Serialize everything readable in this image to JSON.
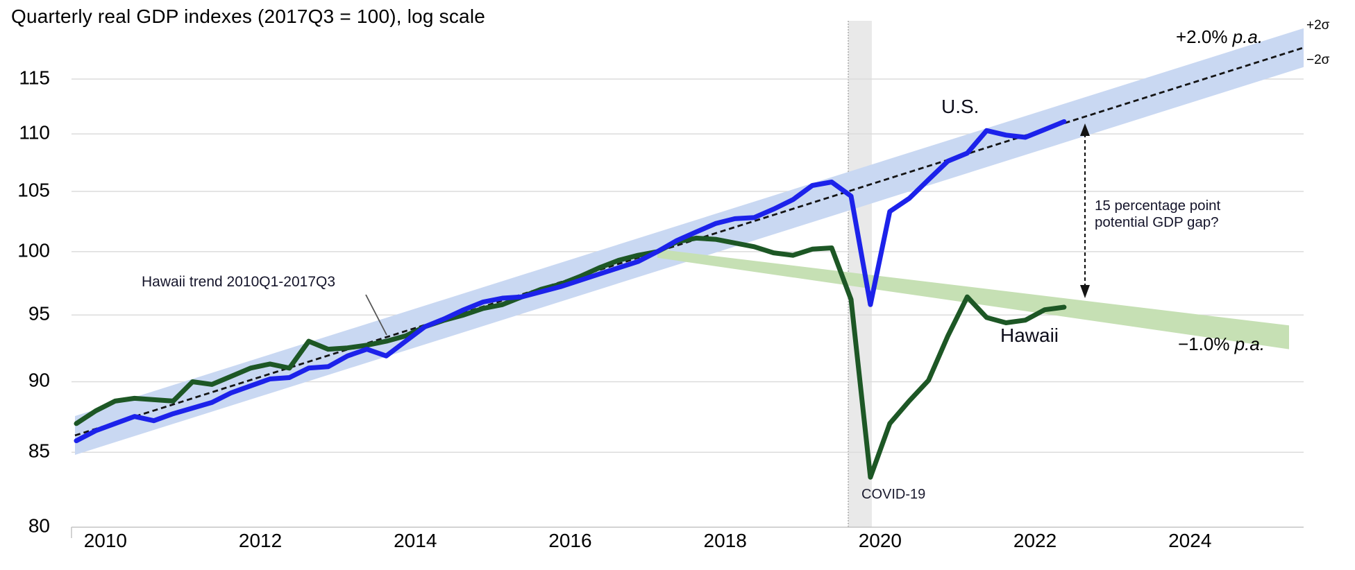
{
  "title": "Quarterly real GDP indexes (2017Q3 = 100), log scale",
  "colors": {
    "us_line": "#1c22ea",
    "hawaii_line": "#1d5725",
    "us_band": "#c9d8f2",
    "hawaii_band": "#c6e0b4",
    "gridline": "#dcdcdc",
    "axis_line": "#c4c4c4",
    "covid_bar": "#e9e9e9",
    "covid_bar_edge": "#999999",
    "trend_line": "#141414",
    "annotation_line": "#555555"
  },
  "annotations": {
    "us_label": "U.S.",
    "hawaii_label": "Hawaii",
    "covid_label": "COVID-19",
    "trend_pointer_label": "Hawaii trend 2010Q1-2017Q3",
    "gap_label_line1": "15 percentage point",
    "gap_label_line2": "potential GDP gap?",
    "plus_sigma": "+2σ",
    "minus_sigma": "−2σ",
    "growth_value": "+2.0% ",
    "growth_suffix": "p.a.",
    "decline_value": "−1.0% ",
    "decline_suffix": "p.a."
  },
  "chart_data": {
    "type": "line",
    "title": "Quarterly real GDP indexes (2017Q3 = 100), log scale",
    "log_scale": true,
    "grid": "horizontal",
    "y_ticks": [
      115,
      110,
      105,
      100,
      95,
      90,
      85,
      80
    ],
    "ylim": [
      80,
      117.5
    ],
    "x_tick_labels": [
      "2010",
      "2012",
      "2014",
      "2016",
      "2018",
      "2020",
      "2022",
      "2024"
    ],
    "quarters": [
      "2010Q1",
      "2010Q2",
      "2010Q3",
      "2010Q4",
      "2011Q1",
      "2011Q2",
      "2011Q3",
      "2011Q4",
      "2012Q1",
      "2012Q2",
      "2012Q3",
      "2012Q4",
      "2013Q1",
      "2013Q2",
      "2013Q3",
      "2013Q4",
      "2014Q1",
      "2014Q2",
      "2014Q3",
      "2014Q4",
      "2015Q1",
      "2015Q2",
      "2015Q3",
      "2015Q4",
      "2016Q1",
      "2016Q2",
      "2016Q3",
      "2016Q4",
      "2017Q1",
      "2017Q2",
      "2017Q3",
      "2017Q4",
      "2018Q1",
      "2018Q2",
      "2018Q3",
      "2018Q4",
      "2019Q1",
      "2019Q2",
      "2019Q3",
      "2019Q4",
      "2020Q1",
      "2020Q2",
      "2020Q3",
      "2020Q4",
      "2021Q1",
      "2021Q2",
      "2021Q3",
      "2021Q4",
      "2022Q1",
      "2022Q2",
      "2022Q3",
      "2022Q4"
    ],
    "series": [
      {
        "name": "U.S.",
        "color": "#1c22ea",
        "values": [
          85.8,
          86.5,
          87.0,
          87.5,
          87.2,
          87.7,
          88.1,
          88.5,
          89.2,
          89.7,
          90.2,
          90.3,
          91.0,
          91.1,
          91.9,
          92.4,
          91.9,
          93.0,
          94.1,
          94.7,
          95.4,
          96.0,
          96.3,
          96.4,
          96.8,
          97.2,
          97.7,
          98.2,
          98.7,
          99.2,
          100.0,
          100.9,
          101.6,
          102.3,
          102.7,
          102.8,
          103.5,
          104.3,
          105.5,
          105.8,
          104.6,
          95.8,
          103.3,
          104.4,
          106.0,
          107.6,
          108.3,
          110.3,
          109.9,
          109.7,
          110.4,
          111.1
        ]
      },
      {
        "name": "Hawaii",
        "color": "#1d5725",
        "values": [
          87.0,
          87.9,
          88.6,
          88.8,
          88.7,
          88.6,
          90.0,
          89.8,
          90.4,
          91.0,
          91.3,
          91.0,
          93.0,
          92.4,
          92.5,
          92.7,
          93.0,
          93.4,
          94.1,
          94.6,
          95.0,
          95.5,
          95.8,
          96.4,
          97.0,
          97.4,
          98.0,
          98.7,
          99.3,
          99.7,
          100.0,
          100.8,
          101.1,
          101.0,
          100.7,
          100.4,
          99.9,
          99.7,
          100.2,
          100.3,
          96.2,
          83.3,
          87.0,
          88.6,
          90.1,
          93.4,
          96.4,
          94.8,
          94.4,
          94.6,
          95.4,
          95.6
        ]
      }
    ],
    "trend": {
      "name": "Hawaii trend 2010Q1-2017Q3",
      "style": "black dashed line with light-blue ±2σ band",
      "growth_per_annum_pct": 2.0,
      "anchor_quarter": "2017Q3",
      "anchor_value": 100,
      "band_halfwidth_pct": 1.6,
      "band_label_top": "+2σ",
      "band_label_bottom": "−2σ"
    },
    "extrapolation": {
      "name": "Hawaii −1.0% p.a. extrapolation band",
      "decline_per_annum_pct": -1.0,
      "start_quarter": "2017Q3",
      "start_top_value": 100.2,
      "start_bottom_value": 99.5,
      "end_top_value": 94.2,
      "end_bottom_value": 92.4
    },
    "covid_shading": {
      "label": "COVID-19",
      "start_quarter": "2020Q1",
      "end_quarter": "2020Q2"
    },
    "gap_annotation": {
      "text": "15 percentage point potential GDP gap?",
      "at_quarter": "2023Q1",
      "from_value": 111.5,
      "to_value": 96.1
    }
  }
}
